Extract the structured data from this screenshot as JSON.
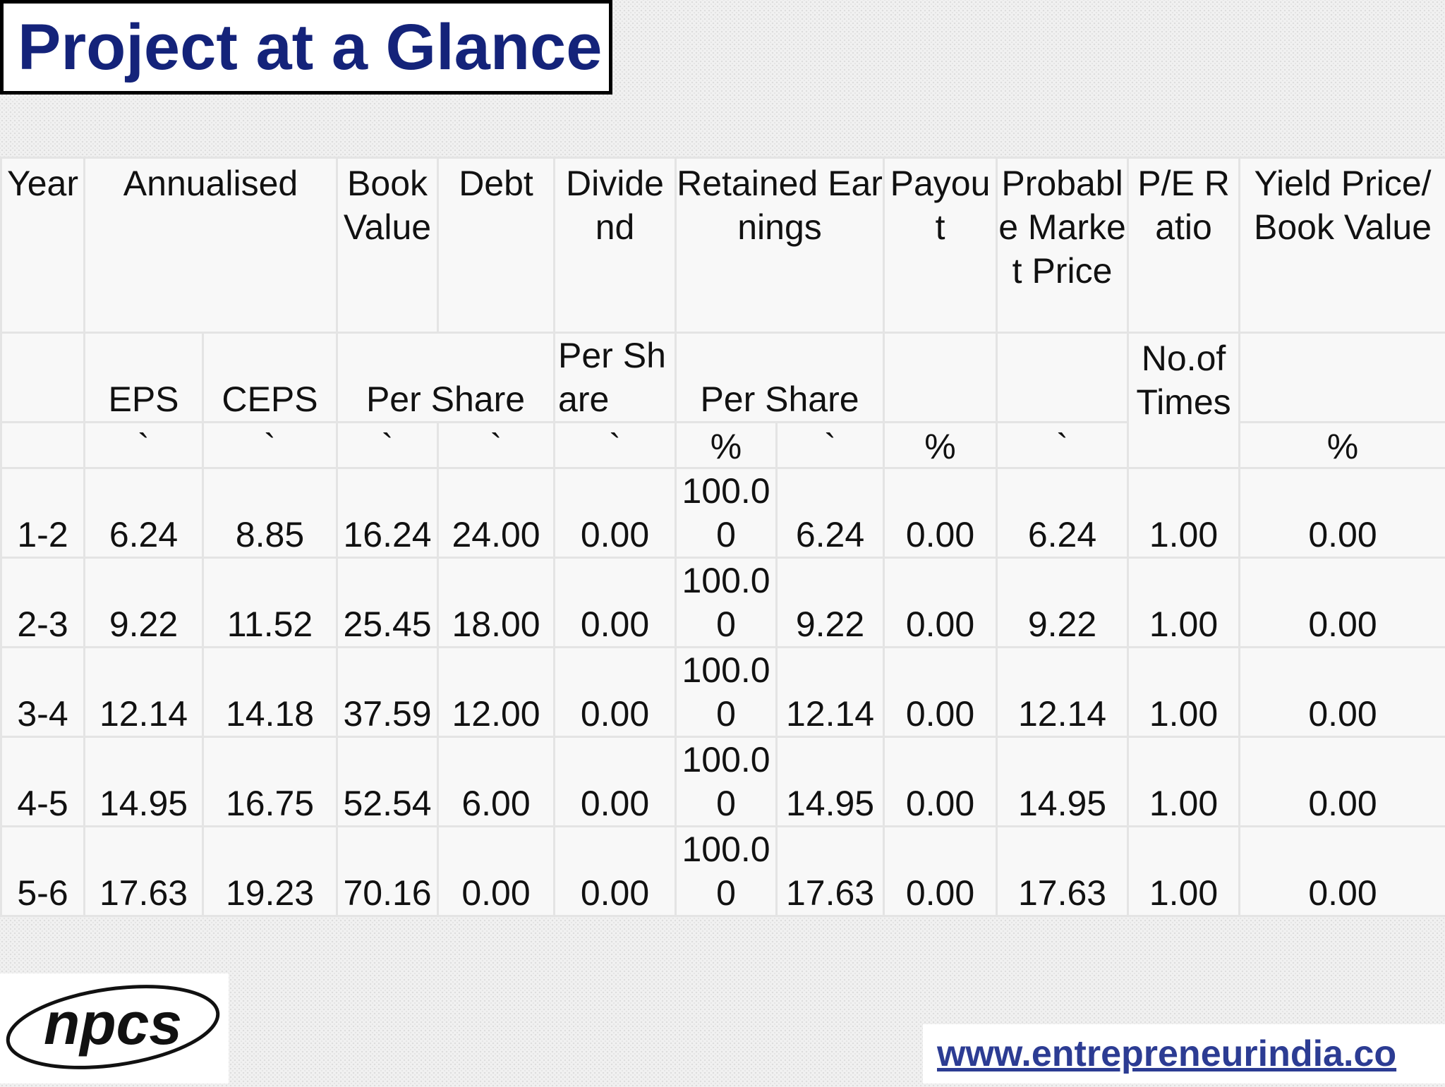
{
  "title": "Project at a Glance",
  "table": {
    "header": {
      "year": "Year",
      "annualised": "Annualised",
      "book_value": "Book Value",
      "debt": "Debt",
      "dividend": "Divide nd",
      "retained_earnings": "Retained Earnings",
      "payout": "Payou t",
      "probable_market_price": "Probabl e Market Price",
      "pe_ratio": "P/E Ratio",
      "yield_price_book_value": "Yield Price/ Book Value"
    },
    "subheader": {
      "eps": "EPS",
      "ceps": "CEPS",
      "book_debt_per_share": "Per Share",
      "dividend_per_share": "Per Share",
      "retained_per_share": "Per Share",
      "pe_no_of_times": "No.of Times"
    },
    "units": {
      "eps": "`",
      "ceps": "`",
      "book_value": "`",
      "debt": "`",
      "dividend": "`",
      "retained_pct": "%",
      "retained_value": "`",
      "payout": "%",
      "market_price": "`",
      "yield": "%"
    },
    "rows": [
      {
        "year": "1-2",
        "eps": "6.24",
        "ceps": "8.85",
        "book_value": "16.24",
        "debt": "24.00",
        "dividend": "0.00",
        "retained_pct": "100.00",
        "retained_value": "6.24",
        "payout": "0.00",
        "market_price": "6.24",
        "pe_ratio": "1.00",
        "yield": "0.00"
      },
      {
        "year": "2-3",
        "eps": "9.22",
        "ceps": "11.52",
        "book_value": "25.45",
        "debt": "18.00",
        "dividend": "0.00",
        "retained_pct": "100.00",
        "retained_value": "9.22",
        "payout": "0.00",
        "market_price": "9.22",
        "pe_ratio": "1.00",
        "yield": "0.00"
      },
      {
        "year": "3-4",
        "eps": "12.14",
        "ceps": "14.18",
        "book_value": "37.59",
        "debt": "12.00",
        "dividend": "0.00",
        "retained_pct": "100.00",
        "retained_value": "12.14",
        "payout": "0.00",
        "market_price": "12.14",
        "pe_ratio": "1.00",
        "yield": "0.00"
      },
      {
        "year": "4-5",
        "eps": "14.95",
        "ceps": "16.75",
        "book_value": "52.54",
        "debt": "6.00",
        "dividend": "0.00",
        "retained_pct": "100.00",
        "retained_value": "14.95",
        "payout": "0.00",
        "market_price": "14.95",
        "pe_ratio": "1.00",
        "yield": "0.00"
      },
      {
        "year": "5-6",
        "eps": "17.63",
        "ceps": "19.23",
        "book_value": "70.16",
        "debt": "0.00",
        "dividend": "0.00",
        "retained_pct": "100.00",
        "retained_value": "17.63",
        "payout": "0.00",
        "market_price": "17.63",
        "pe_ratio": "1.00",
        "yield": "0.00"
      }
    ]
  },
  "footer": {
    "logo_text": "npcs",
    "website": "www.entrepreneurindia.co"
  },
  "colors": {
    "title": "#14237a",
    "website": "#2c3c93"
  }
}
